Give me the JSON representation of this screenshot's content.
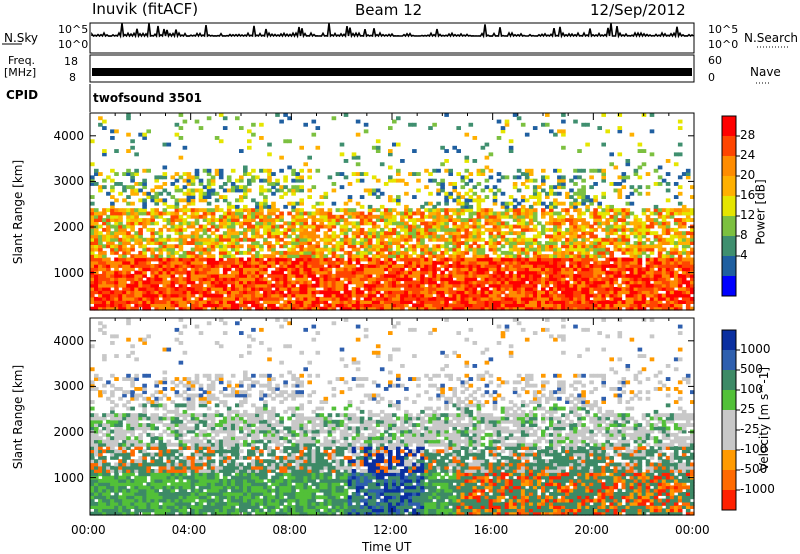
{
  "header": {
    "radar": "Inuvik (fitACF)",
    "beam": "Beam 12",
    "date": "12/Sep/2012"
  },
  "top_panels": {
    "nsky_label": "N.Sky",
    "nsky_ticks": [
      "10^5",
      "10^0"
    ],
    "nsearch_label": "N.Search",
    "nsearch_ticks": [
      "10^5",
      "10^0"
    ],
    "freq_label_1": "Freq.",
    "freq_label_2": "[MHz]",
    "freq_ticks": [
      "18",
      "8"
    ],
    "nave_label": "Nave",
    "nave_ticks": [
      "60",
      "0"
    ],
    "cpid_label": "CPID",
    "cpid_value": "twofsound 3501"
  },
  "chart_data": [
    {
      "type": "heatmap",
      "panel": "power",
      "xlabel": "",
      "ylabel": "Slant Range [km]",
      "yticks": [
        1000,
        2000,
        3000,
        4000
      ],
      "ylim": [
        180,
        4500
      ],
      "colorbar_label": "Power [dB]",
      "colorbar_ticks": [
        "28",
        "24",
        "20",
        "16",
        "12",
        "8",
        "4"
      ],
      "colorbar_colors": [
        "#ff0000",
        "#ff4500",
        "#ff8c00",
        "#ffb000",
        "#e5e500",
        "#7cc040",
        "#3f8f6f",
        "#1f5fa0",
        "#0000ff"
      ]
    },
    {
      "type": "heatmap",
      "panel": "velocity",
      "xlabel": "Time UT",
      "ylabel": "Slant Range [km]",
      "yticks": [
        1000,
        2000,
        3000,
        4000
      ],
      "ylim": [
        180,
        4500
      ],
      "xticks": [
        "00:00",
        "04:00",
        "08:00",
        "12:00",
        "16:00",
        "20:00",
        "00:00"
      ],
      "xlim_hours": [
        0,
        24
      ],
      "colorbar_label": "Velocity [m s^-1]",
      "colorbar_ticks": [
        "1000",
        "500",
        "100",
        "25",
        "-25",
        "-100",
        "-500",
        "-1000"
      ],
      "colorbar_colors": [
        "#0a2fa0",
        "#2e5fae",
        "#3d8a66",
        "#52c038",
        "#c8c8c8",
        "#c8c8c8",
        "#ff9a00",
        "#ff6a00",
        "#ff2000"
      ]
    }
  ]
}
